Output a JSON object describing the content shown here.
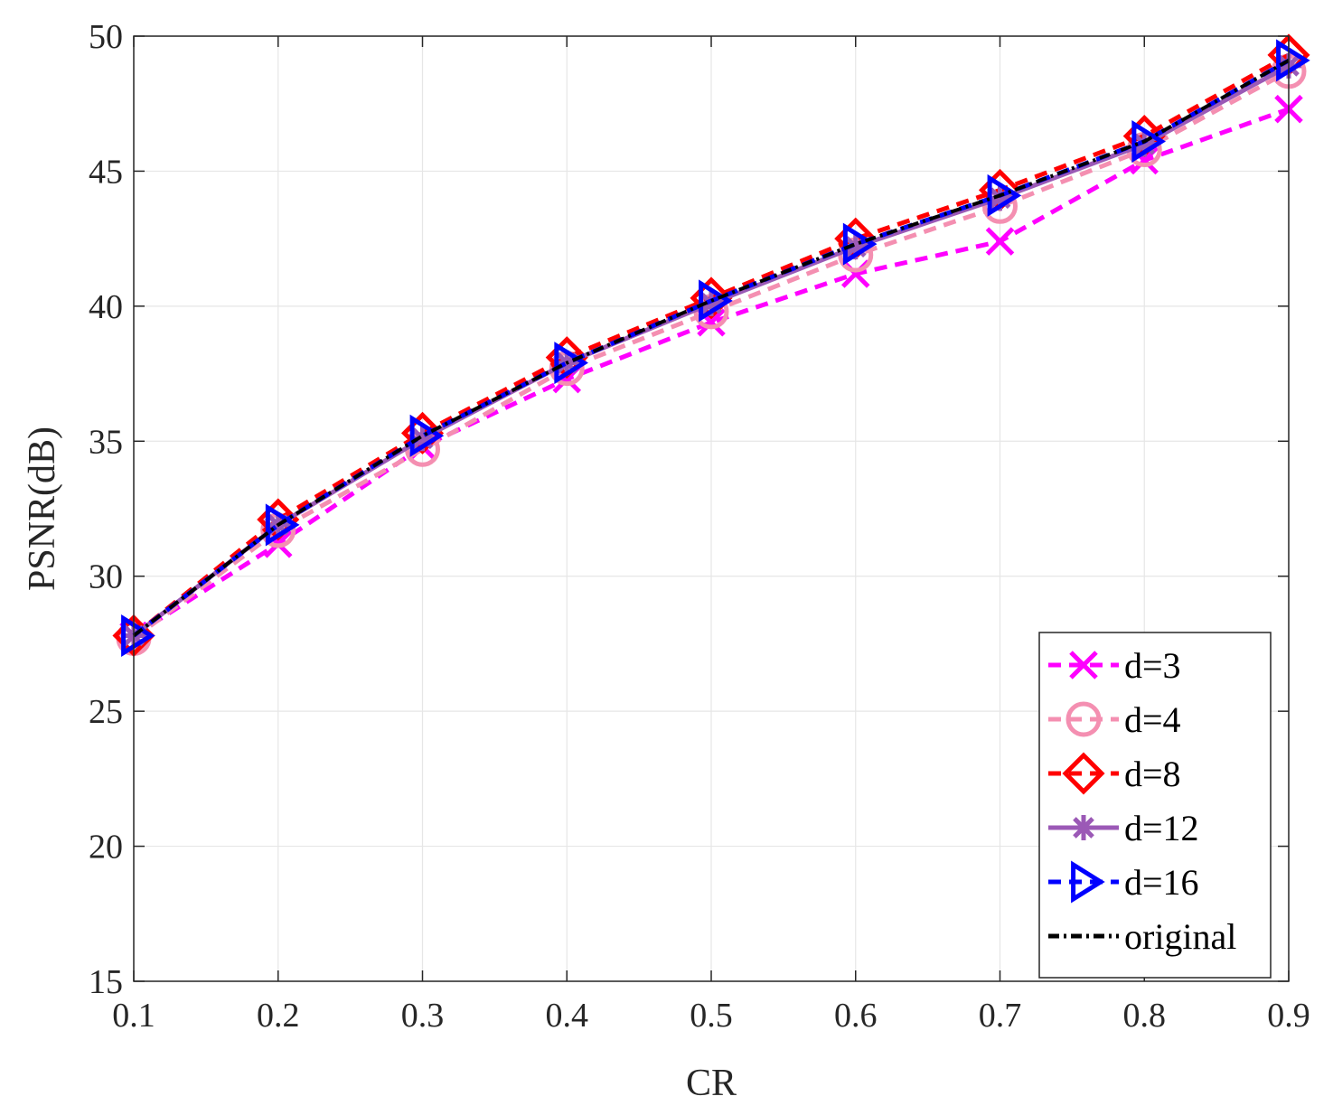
{
  "chart_data": {
    "type": "line",
    "xlabel": "CR",
    "ylabel": "PSNR(dB)",
    "xlim": [
      0.1,
      0.9
    ],
    "ylim": [
      15,
      50
    ],
    "xticks": [
      "0.1",
      "0.2",
      "0.3",
      "0.4",
      "0.5",
      "0.6",
      "0.7",
      "0.8",
      "0.9"
    ],
    "yticks": [
      "15",
      "20",
      "25",
      "30",
      "35",
      "40",
      "45",
      "50"
    ],
    "grid": true,
    "legend_position": "bottom-right",
    "x": [
      0.1,
      0.2,
      0.3,
      0.4,
      0.5,
      0.6,
      0.7,
      0.8,
      0.9
    ],
    "series": [
      {
        "name": "d=3",
        "color": "#ff00ff",
        "marker": "x",
        "dash": "dashed",
        "values": [
          27.8,
          31.2,
          34.8,
          37.3,
          39.4,
          41.2,
          42.4,
          45.4,
          47.3
        ]
      },
      {
        "name": "d=4",
        "color": "#f48fb1",
        "marker": "circle",
        "dash": "dashed",
        "values": [
          27.7,
          31.7,
          34.7,
          37.7,
          39.8,
          41.9,
          43.7,
          45.8,
          48.7
        ]
      },
      {
        "name": "d=8",
        "color": "#ff0000",
        "marker": "diamond",
        "dash": "dashed",
        "values": [
          27.8,
          32.1,
          35.3,
          38.1,
          40.3,
          42.5,
          44.3,
          46.3,
          49.3
        ]
      },
      {
        "name": "d=12",
        "color": "#9b59b6",
        "marker": "asterisk",
        "dash": "solid",
        "values": [
          27.8,
          31.9,
          35.1,
          37.9,
          40.1,
          42.2,
          44.0,
          46.0,
          48.9
        ]
      },
      {
        "name": "d=16",
        "color": "#0000ff",
        "marker": "triangle-right",
        "dash": "dashed",
        "values": [
          27.8,
          31.9,
          35.2,
          37.9,
          40.2,
          42.3,
          44.1,
          46.1,
          49.1
        ]
      },
      {
        "name": "original",
        "color": "#000000",
        "marker": "none",
        "dash": "dashdot",
        "values": [
          27.8,
          31.9,
          35.2,
          37.9,
          40.2,
          42.3,
          44.1,
          46.1,
          49.1
        ]
      }
    ]
  }
}
